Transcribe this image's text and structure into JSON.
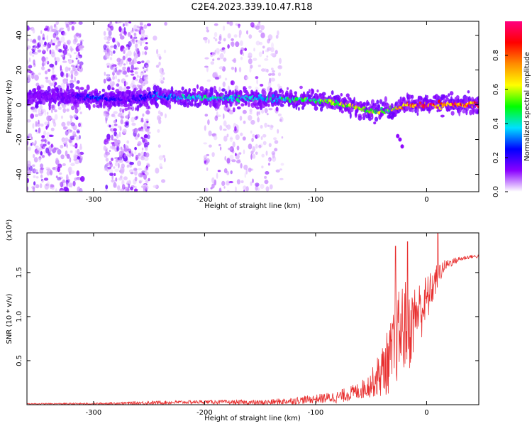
{
  "title": "C2E4.2023.339.10.47.R18",
  "chart_data": [
    {
      "type": "heatmap",
      "xlabel": "Height of straight line (km)",
      "ylabel": "Frequency (Hz)",
      "xlim": [
        -360,
        47
      ],
      "ylim": [
        -50,
        48
      ],
      "x_ticks": [
        -300,
        -200,
        -100,
        0
      ],
      "x_tick_labels": [
        "-300",
        "-200",
        "-100",
        "0"
      ],
      "y_ticks": [
        -40,
        -20,
        0,
        20,
        40
      ],
      "y_tick_labels": [
        "-40",
        "-20",
        "0",
        "20",
        "40"
      ],
      "colorbar": {
        "label": "Normalized spectral amplitude",
        "range": [
          0,
          1
        ],
        "ticks": [
          0.0,
          0.2,
          0.4,
          0.6,
          0.8
        ],
        "tick_labels": [
          "0.0",
          "0.2",
          "0.4",
          "0.6",
          "0.8"
        ],
        "colors": [
          "#ffffff",
          "#8a00ff",
          "#0000ff",
          "#00e0ff",
          "#00ff00",
          "#ffff00",
          "#ff8c00",
          "#ff0000",
          "#ff0080"
        ]
      },
      "ridge": {
        "x": [
          -360,
          -320,
          -300,
          -270,
          -250,
          -200,
          -150,
          -120,
          -100,
          -80,
          -60,
          -45,
          -35,
          -25,
          -20,
          -10,
          0,
          10,
          20,
          30,
          47
        ],
        "y": [
          5,
          5,
          4,
          3,
          5,
          4,
          4,
          3,
          3,
          1,
          -2,
          -4,
          -3,
          -2,
          0,
          0,
          0,
          0,
          0,
          0,
          0
        ],
        "peak_amplitude": [
          0.08,
          0.15,
          0.3,
          0.15,
          0.3,
          0.45,
          0.4,
          0.5,
          0.55,
          0.6,
          0.65,
          0.6,
          0.55,
          0.8,
          0.85,
          0.9,
          0.95,
          0.9,
          0.9,
          0.9,
          0.9
        ]
      },
      "noise_bands": [
        {
          "x": [
            -360,
            -310
          ],
          "density": "high"
        },
        {
          "x": [
            -290,
            -250
          ],
          "density": "high"
        },
        {
          "x": [
            -245,
            -235
          ],
          "density": "low"
        },
        {
          "x": [
            -200,
            -140
          ],
          "density": "medium"
        },
        {
          "x": [
            -140,
            -130
          ],
          "density": "low"
        }
      ]
    },
    {
      "type": "line",
      "xlabel": "Height of straight line (km)",
      "ylabel": "SNR (10 * v/v)",
      "y_multiplier": "(x10⁴)",
      "xlim": [
        -360,
        47
      ],
      "ylim": [
        0,
        1.95
      ],
      "x_ticks": [
        -300,
        -200,
        -100,
        0
      ],
      "x_tick_labels": [
        "-300",
        "-200",
        "-100",
        "0"
      ],
      "y_ticks": [
        0.5,
        1.0,
        1.5
      ],
      "y_tick_labels": [
        "0.5",
        "1.0",
        "1.5"
      ],
      "color": "#e83030",
      "series": [
        {
          "x": [
            -360,
            -300,
            -250,
            -200,
            -150,
            -120,
            -100,
            -80,
            -60,
            -50,
            -40,
            -30,
            -25,
            -20,
            -15,
            -10,
            -5,
            0,
            5,
            10,
            15,
            20,
            30,
            40,
            47
          ],
          "values": [
            0.01,
            0.01,
            0.02,
            0.03,
            0.02,
            0.04,
            0.06,
            0.08,
            0.15,
            0.22,
            0.35,
            0.55,
            0.75,
            0.85,
            0.8,
            1.0,
            1.05,
            1.15,
            1.3,
            1.45,
            1.55,
            1.6,
            1.65,
            1.68,
            1.68
          ],
          "noise_amplitude": [
            0.005,
            0.01,
            0.02,
            0.02,
            0.03,
            0.04,
            0.05,
            0.07,
            0.1,
            0.15,
            0.3,
            0.45,
            0.5,
            0.55,
            0.45,
            0.35,
            0.35,
            0.3,
            0.2,
            0.15,
            0.08,
            0.05,
            0.03,
            0.02,
            0.02
          ],
          "spikes": [
            {
              "x": -28,
              "y": 1.8
            },
            {
              "x": -17,
              "y": 1.85
            },
            {
              "x": 10,
              "y": 1.95
            }
          ]
        }
      ]
    }
  ]
}
